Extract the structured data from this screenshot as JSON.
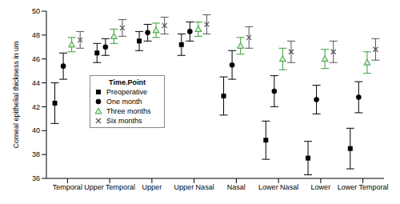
{
  "chart_data": {
    "type": "scatter",
    "y_label": "Corneal epithelial thickness in um",
    "legend_title": "Time.Point",
    "legend": "left",
    "grid": false,
    "categories": [
      "Temporal",
      "Upper Temporal",
      "Upper",
      "Upper Nasal",
      "Nasal",
      "Lower Nasal",
      "Lower",
      "Lower Temporal"
    ],
    "ylim": [
      36,
      50
    ],
    "yticks": [
      36,
      38,
      40,
      42,
      44,
      46,
      48,
      50
    ],
    "series": [
      {
        "name": "Preoperative",
        "color": "#000000",
        "marker": "square",
        "values": [
          42.3,
          46.5,
          47.5,
          47.2,
          42.9,
          39.2,
          37.7,
          38.5
        ],
        "errors": [
          1.7,
          0.8,
          0.8,
          0.9,
          1.6,
          1.6,
          1.4,
          1.7
        ]
      },
      {
        "name": "One month",
        "color": "#000000",
        "marker": "circle",
        "values": [
          45.4,
          47.0,
          48.2,
          48.3,
          45.5,
          43.3,
          42.6,
          42.8
        ],
        "errors": [
          1.1,
          0.7,
          0.7,
          0.8,
          1.2,
          1.3,
          1.2,
          1.3
        ]
      },
      {
        "name": "Three months",
        "color": "#3c9a3c",
        "marker": "triangle",
        "values": [
          47.2,
          47.9,
          48.4,
          48.5,
          47.1,
          46.0,
          46.0,
          45.7
        ],
        "errors": [
          0.6,
          0.6,
          0.6,
          0.6,
          0.7,
          0.9,
          0.8,
          0.9
        ]
      },
      {
        "name": "Six months",
        "color": "#555555",
        "marker": "cross",
        "values": [
          47.6,
          48.6,
          48.8,
          48.9,
          47.8,
          46.6,
          46.6,
          46.8
        ],
        "errors": [
          0.7,
          0.7,
          0.7,
          0.8,
          0.9,
          0.9,
          0.9,
          0.9
        ]
      }
    ]
  }
}
